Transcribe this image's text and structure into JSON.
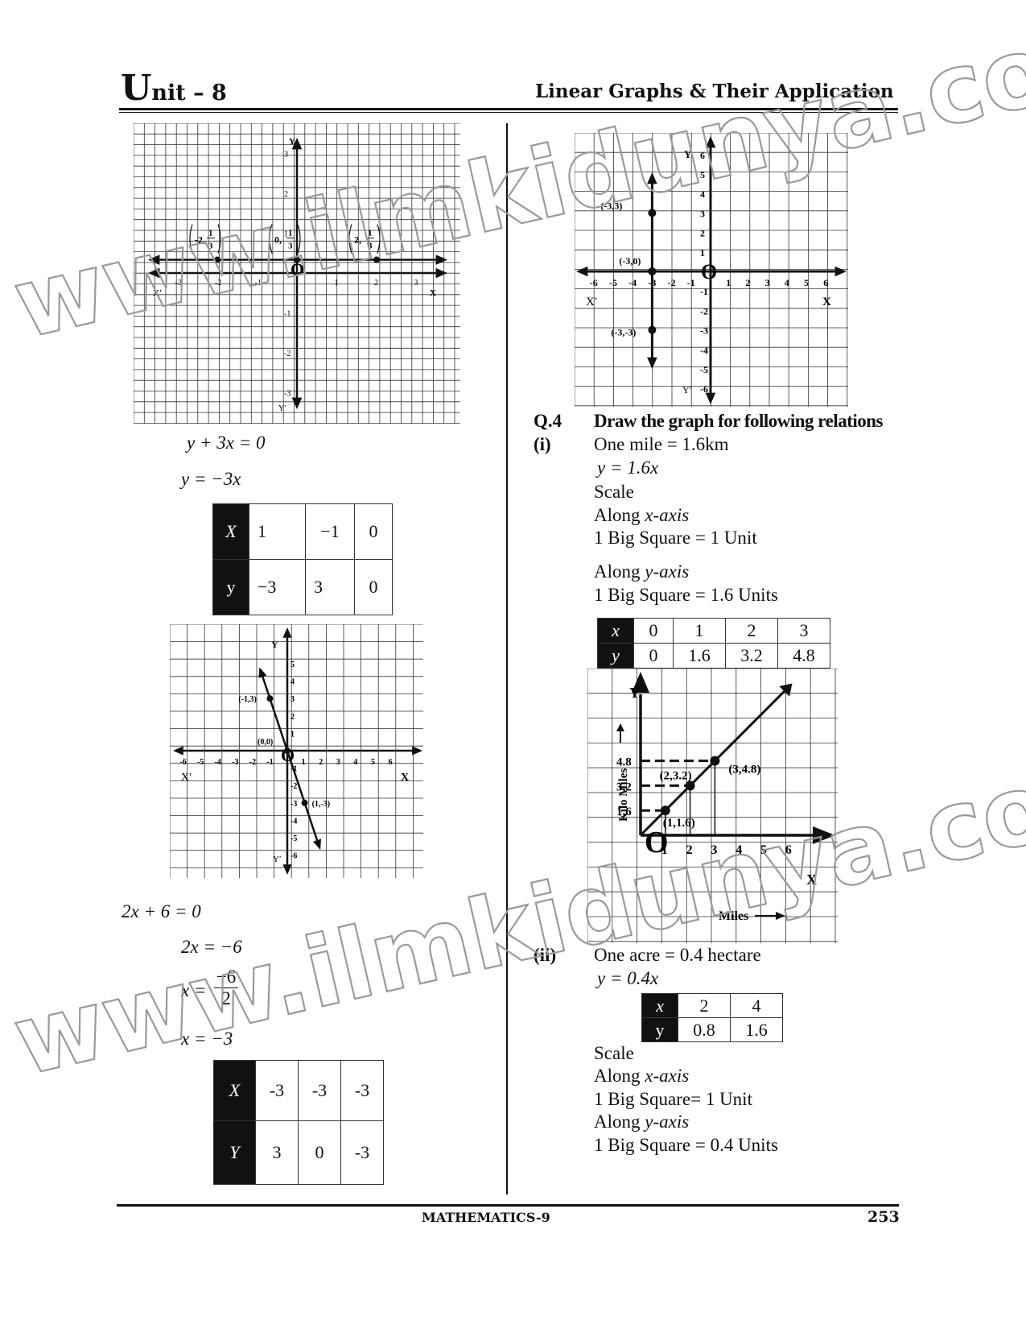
{
  "header": {
    "unit_big": "U",
    "unit_rest": "nit – 8",
    "title": "Linear Graphs & Their Application"
  },
  "watermark": "www.ilmkidunya.com",
  "left": {
    "graph1": {
      "axis_x": "X",
      "axis_x_neg": "X′",
      "axis_y": "Y",
      "axis_y_neg": "Y′",
      "x_ticks": [
        "-3",
        "-2",
        "-1",
        "1",
        "2",
        "3"
      ],
      "y_ticks": [
        "3",
        "2",
        "1",
        "-1",
        "-2",
        "-3"
      ],
      "origin": "O",
      "points": [
        {
          "label_int": "-2,",
          "label_num": "1",
          "label_den": "3",
          "x": -2,
          "y": 0.333
        },
        {
          "label_int": "0,",
          "label_num": "1",
          "label_den": "3",
          "x": 0,
          "y": 0.333
        },
        {
          "label_int": "2,",
          "label_num": "1",
          "label_den": "3",
          "x": 2,
          "y": 0.333
        }
      ]
    },
    "eq1": "y + 3x = 0",
    "eq2": "y = −3x",
    "table1": {
      "header": [
        "X",
        "y"
      ],
      "rows": [
        [
          "1",
          "−1",
          "0"
        ],
        [
          "−3",
          "3",
          "0"
        ]
      ]
    },
    "graph2": {
      "axis_x": "X",
      "axis_x_neg": "X′",
      "axis_y": "Y",
      "axis_y_neg": "Y′",
      "x_ticks": [
        "-6",
        "-5",
        "-4",
        "-3",
        "-2",
        "-1",
        "1",
        "2",
        "3",
        "4",
        "5",
        "6"
      ],
      "y_ticks": [
        "5",
        "4",
        "3",
        "2",
        "1",
        "-1",
        "-2",
        "-3",
        "-4",
        "-5",
        "-6"
      ],
      "origin": "O",
      "points": [
        {
          "label": "(-1,3)",
          "x": -1,
          "y": 3
        },
        {
          "label": "(0,0)",
          "x": 0,
          "y": 0
        },
        {
          "label": "(1,-3)",
          "x": 1,
          "y": -3
        }
      ]
    },
    "eq3": "2x + 6 = 0",
    "eq4": "2x = −6",
    "eq5_lhs": "x =",
    "eq5_num": "−6",
    "eq5_den": "2",
    "eq6": "x = −3",
    "table2": {
      "header": [
        "X",
        "Y"
      ],
      "rows": [
        [
          "-3",
          "-3",
          "-3"
        ],
        [
          "3",
          "0",
          "-3"
        ]
      ]
    }
  },
  "right": {
    "graph3": {
      "axis_x": "X",
      "axis_x_neg": "X′",
      "axis_y": "Y",
      "axis_y_neg": "Y′",
      "x_ticks": [
        "-6",
        "-5",
        "-4",
        "-3",
        "-2",
        "-1",
        "1",
        "2",
        "3",
        "4",
        "5",
        "6"
      ],
      "y_ticks": [
        "6",
        "5",
        "4",
        "3",
        "2",
        "1",
        "-1",
        "-2",
        "-3",
        "-4",
        "-5",
        "-6"
      ],
      "origin": "O",
      "points": [
        {
          "label": "(-3,3)",
          "x": -3,
          "y": 3
        },
        {
          "label": "(-3,0)",
          "x": -3,
          "y": 0
        },
        {
          "label": "(-3,-3)",
          "x": -3,
          "y": -3
        }
      ]
    },
    "q4_num": "Q.4",
    "q4_text": "Draw the graph for following relations",
    "part1_num": "(i)",
    "part1_line1": "One mile  = 1.6km",
    "part1_line2": "y = 1.6x",
    "scale1": "Scale",
    "scale1_xaxis_label": "Along",
    "scale1_xaxis": "x-axis",
    "scale1_x": "1 Big Square = 1 Unit",
    "scale1_yaxis_label": "Along",
    "scale1_yaxis": "y-axis",
    "scale1_y": "1 Big Square = 1.6 Units",
    "table3": {
      "header": [
        "x",
        "y"
      ],
      "rows": [
        [
          "0",
          "1",
          "2",
          "3"
        ],
        [
          "0",
          "1.6",
          "3.2",
          "4.8"
        ]
      ]
    },
    "graph4": {
      "axis_x": "X",
      "axis_y": "Y",
      "origin": "O",
      "x_ticks": [
        "1",
        "2",
        "3",
        "4",
        "5",
        "6"
      ],
      "y_ticks": [
        "1.6",
        "3.2",
        "4.8"
      ],
      "y_title": "Kilo Miles",
      "x_title": "Miles",
      "points": [
        {
          "label": "(1,1.6)",
          "x": 1,
          "y": 1.6
        },
        {
          "label": "(2,3.2)",
          "x": 2,
          "y": 3.2
        },
        {
          "label": "(3,4.8)",
          "x": 3,
          "y": 4.8
        }
      ]
    },
    "part2_num": "(ii)",
    "part2_line1": "One acre  = 0.4 hectare",
    "part2_line2": "y = 0.4x",
    "table4": {
      "header": [
        "x",
        "y"
      ],
      "rows": [
        [
          "2",
          "4"
        ],
        [
          "0.8",
          "1.6"
        ]
      ]
    },
    "scale2": "Scale",
    "scale2_xaxis_label": "Along",
    "scale2_xaxis": "x-axis",
    "scale2_x": "1 Big Square= 1 Unit",
    "scale2_yaxis_label": "Along",
    "scale2_yaxis": "y-axis",
    "scale2_y": "1 Big Square = 0.4 Units"
  },
  "footer": {
    "subject": "MATHEMATICS-9",
    "page": "253"
  }
}
